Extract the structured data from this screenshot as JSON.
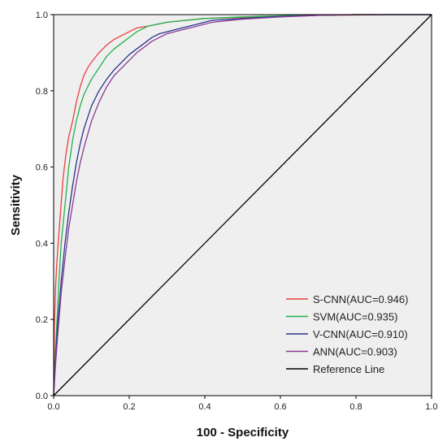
{
  "chart_data": {
    "type": "line",
    "title": "",
    "xlabel": "100 - Specificity",
    "ylabel": "Sensitivity",
    "xlim": [
      0,
      1
    ],
    "ylim": [
      0,
      1
    ],
    "xticks": [
      "0.0",
      "0.2",
      "0.4",
      "0.6",
      "0.8",
      "1.0"
    ],
    "yticks": [
      "0.0",
      "0.2",
      "0.4",
      "0.6",
      "0.8",
      "1.0"
    ],
    "grid": false,
    "legend_position": "bottom-right",
    "background": "#efefef",
    "series": [
      {
        "name": "S-CNN(AUC=0.946)",
        "color": "#e8413c",
        "x": [
          0,
          0.002,
          0.005,
          0.008,
          0.012,
          0.018,
          0.025,
          0.032,
          0.04,
          0.05,
          0.06,
          0.07,
          0.08,
          0.09,
          0.1,
          0.12,
          0.14,
          0.16,
          0.18,
          0.2,
          0.22,
          0.25,
          0.3,
          0.35,
          0.4,
          0.5,
          0.6,
          0.7,
          0.8,
          0.9,
          1.0
        ],
        "y": [
          0,
          0.18,
          0.28,
          0.34,
          0.4,
          0.48,
          0.57,
          0.63,
          0.68,
          0.72,
          0.77,
          0.81,
          0.84,
          0.86,
          0.875,
          0.9,
          0.92,
          0.935,
          0.945,
          0.955,
          0.965,
          0.97,
          0.98,
          0.985,
          0.99,
          0.993,
          0.996,
          0.998,
          0.999,
          1.0,
          1.0
        ]
      },
      {
        "name": "SVM(AUC=0.935)",
        "color": "#21b24b",
        "x": [
          0,
          0.005,
          0.01,
          0.015,
          0.02,
          0.03,
          0.04,
          0.05,
          0.06,
          0.07,
          0.08,
          0.09,
          0.1,
          0.12,
          0.14,
          0.16,
          0.18,
          0.2,
          0.22,
          0.25,
          0.3,
          0.35,
          0.4,
          0.5,
          0.6,
          0.7,
          0.8,
          0.9,
          1.0
        ],
        "y": [
          0,
          0.12,
          0.22,
          0.32,
          0.4,
          0.5,
          0.6,
          0.67,
          0.72,
          0.76,
          0.79,
          0.81,
          0.83,
          0.86,
          0.89,
          0.91,
          0.925,
          0.94,
          0.955,
          0.97,
          0.98,
          0.985,
          0.99,
          0.994,
          0.997,
          0.999,
          1.0,
          1.0,
          1.0
        ]
      },
      {
        "name": "V-CNN(AUC=0.910)",
        "color": "#27348b",
        "x": [
          0,
          0.005,
          0.01,
          0.02,
          0.03,
          0.04,
          0.05,
          0.06,
          0.07,
          0.08,
          0.1,
          0.12,
          0.14,
          0.16,
          0.18,
          0.2,
          0.22,
          0.24,
          0.26,
          0.28,
          0.3,
          0.34,
          0.38,
          0.42,
          0.5,
          0.6,
          0.7,
          0.8,
          0.9,
          1.0
        ],
        "y": [
          0,
          0.1,
          0.18,
          0.3,
          0.4,
          0.48,
          0.55,
          0.61,
          0.66,
          0.7,
          0.76,
          0.8,
          0.83,
          0.855,
          0.875,
          0.895,
          0.91,
          0.925,
          0.94,
          0.95,
          0.955,
          0.965,
          0.975,
          0.985,
          0.99,
          0.995,
          0.998,
          1.0,
          1.0,
          1.0
        ]
      },
      {
        "name": "ANN(AUC=0.903)",
        "color": "#8b3a96",
        "x": [
          0,
          0.005,
          0.01,
          0.02,
          0.03,
          0.04,
          0.05,
          0.06,
          0.07,
          0.08,
          0.1,
          0.12,
          0.14,
          0.16,
          0.18,
          0.2,
          0.22,
          0.24,
          0.26,
          0.28,
          0.3,
          0.34,
          0.38,
          0.42,
          0.5,
          0.6,
          0.7,
          0.8,
          0.9,
          1.0
        ],
        "y": [
          0,
          0.08,
          0.15,
          0.27,
          0.36,
          0.44,
          0.5,
          0.56,
          0.61,
          0.65,
          0.72,
          0.77,
          0.81,
          0.84,
          0.86,
          0.88,
          0.9,
          0.915,
          0.93,
          0.94,
          0.95,
          0.96,
          0.97,
          0.98,
          0.988,
          0.994,
          0.998,
          1.0,
          1.0,
          1.0
        ]
      },
      {
        "name": "Reference Line",
        "color": "#000000",
        "x": [
          0,
          1
        ],
        "y": [
          0,
          1
        ]
      }
    ]
  }
}
